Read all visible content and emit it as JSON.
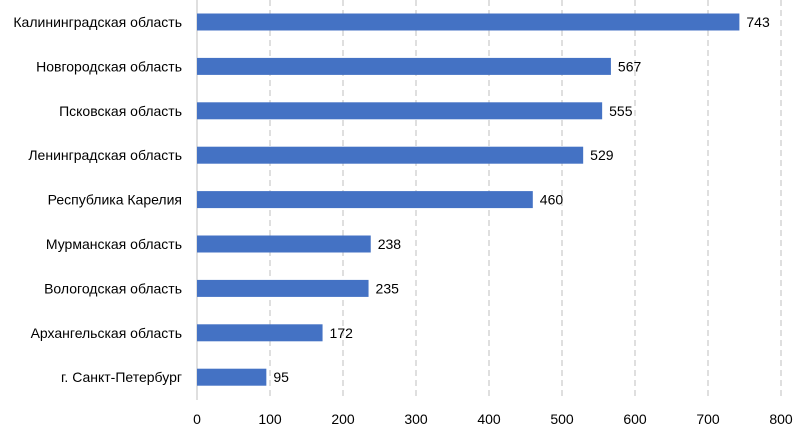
{
  "chart_data": {
    "type": "bar",
    "orientation": "horizontal",
    "categories": [
      "Калининградская область",
      "Новгородская область",
      "Псковская область",
      "Ленинградская область",
      "Республика Карелия",
      "Мурманская область",
      "Вологодская область",
      "Архангельская область",
      "г. Санкт-Петербург"
    ],
    "values": [
      743,
      567,
      555,
      529,
      460,
      238,
      235,
      172,
      95
    ],
    "xlim": [
      0,
      800
    ],
    "xticks": [
      0,
      100,
      200,
      300,
      400,
      500,
      600,
      700,
      800
    ],
    "title": "",
    "xlabel": "",
    "ylabel": "",
    "grid": "vertical dashed",
    "bar_color": "#4472C4",
    "grid_color": "#BFBFBF",
    "data_labels": true
  }
}
